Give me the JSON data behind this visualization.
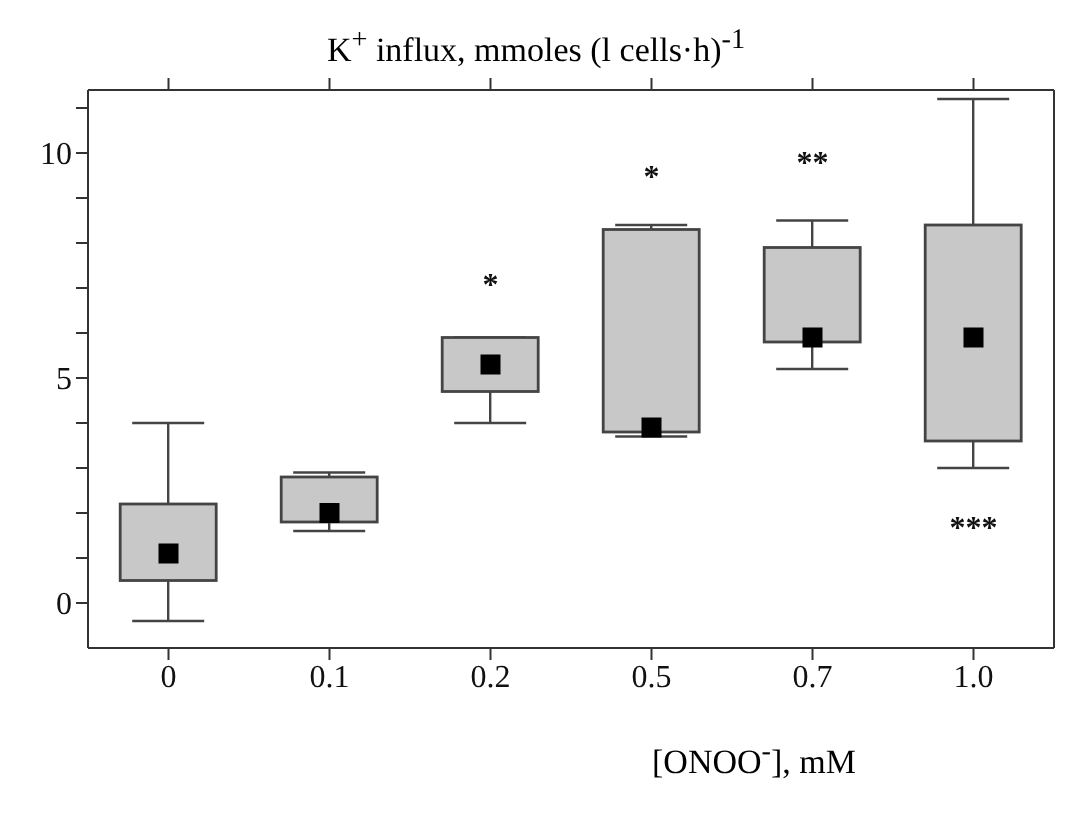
{
  "chart_data": {
    "type": "box",
    "title": "K$^{+}$ influx, mmoles (l cells·h)$^{-1}$",
    "xlabel": "[ONOO$^{-}$], mM",
    "categories": [
      "0",
      "0.1",
      "0.2",
      "0.5",
      "0.7",
      "1.0"
    ],
    "boxes": [
      {
        "low": -0.4,
        "q1": 0.5,
        "median": 1.1,
        "q3": 2.2,
        "high": 4.0
      },
      {
        "low": 1.6,
        "q1": 1.8,
        "median": 2.0,
        "q3": 2.8,
        "high": 2.9
      },
      {
        "low": 4.0,
        "q1": 4.7,
        "median": 5.3,
        "q3": 5.9,
        "high": 5.9
      },
      {
        "low": 3.7,
        "q1": 3.8,
        "median": 3.9,
        "q3": 8.3,
        "high": 8.4
      },
      {
        "low": 5.2,
        "q1": 5.8,
        "median": 5.9,
        "q3": 7.9,
        "high": 8.5
      },
      {
        "low": 3.0,
        "q1": 3.6,
        "median": 5.9,
        "q3": 8.4,
        "high": 11.2
      }
    ],
    "color": "#c8c8c8",
    "ylim": [
      -1,
      11.4
    ],
    "yticks": [
      0,
      {
        "value": 1,
        "label": null
      },
      {
        "value": 2,
        "label": null
      },
      {
        "value": 3,
        "label": null
      },
      {
        "value": 4,
        "label": null
      },
      5,
      {
        "value": 6,
        "label": null
      },
      {
        "value": 7,
        "label": null
      },
      {
        "value": 8,
        "label": null
      },
      {
        "value": 9,
        "label": null
      },
      10,
      {
        "value": 11,
        "label": null
      }
    ],
    "annotations": [
      "*",
      "*",
      "**",
      "***"
    ]
  }
}
